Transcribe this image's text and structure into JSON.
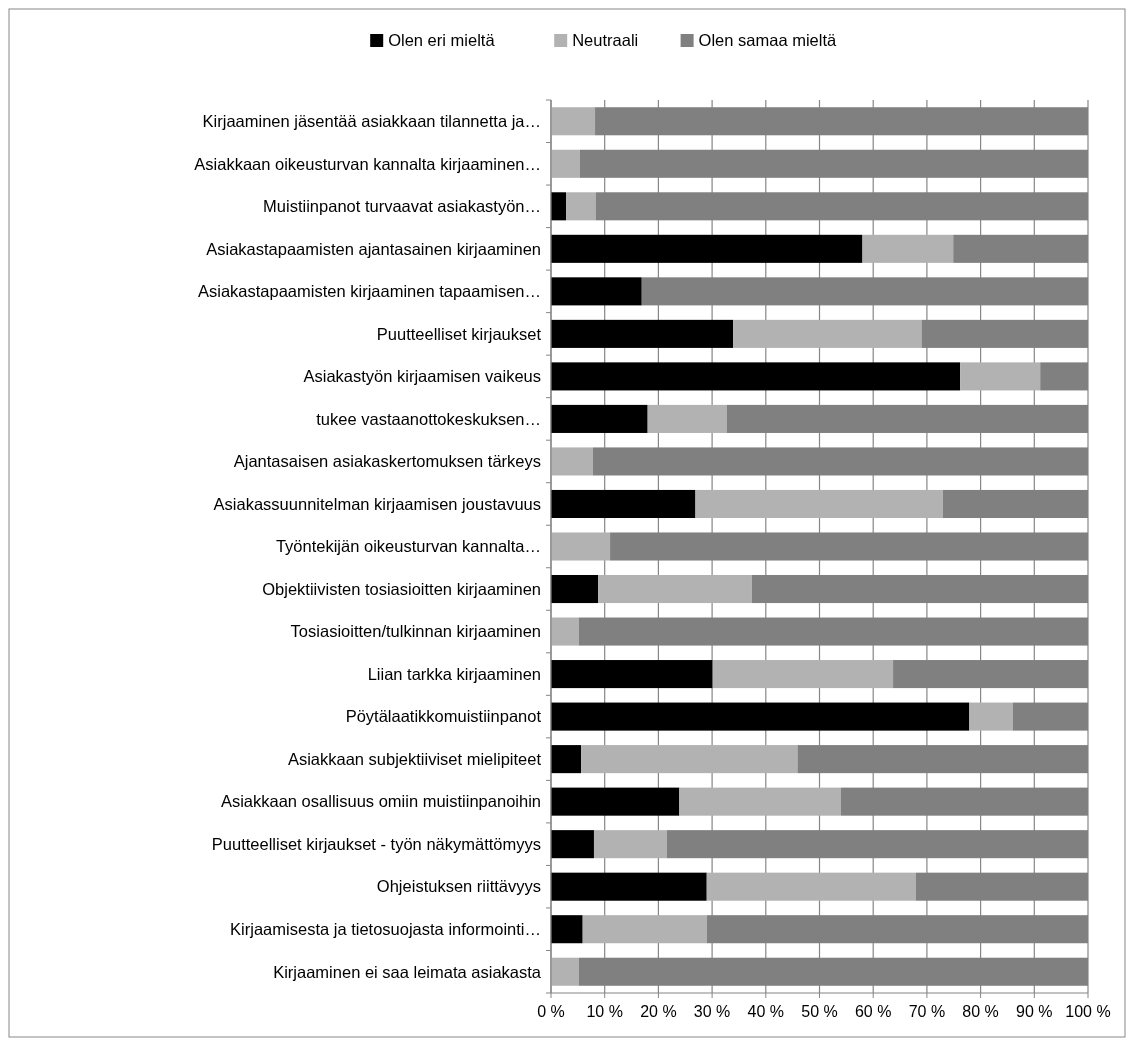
{
  "chart_data": {
    "type": "bar",
    "orientation": "horizontal",
    "stacked": true,
    "legend": "top",
    "grid": "x",
    "categories": [
      "Kirjaaminen jäsentää asiakkaan tilannetta ja…",
      "Asiakkaan oikeusturvan kannalta kirjaaminen…",
      "Muistiinpanot turvaavat asiakastyön…",
      "Asiakastapaamisten ajantasainen kirjaaminen",
      "Asiakastapaamisten kirjaaminen tapaamisen…",
      "Puutteelliset kirjaukset",
      "Asiakastyön kirjaamisen vaikeus",
      "tukee vastaanottokeskuksen…",
      "Ajantasaisen asiakaskertomuksen tärkeys",
      "Asiakassuunnitelman kirjaamisen joustavuus",
      "Työntekijän oikeusturvan kannalta…",
      "Objektiivisten tosiasioitten kirjaaminen",
      "Tosiasioitten/tulkinnan kirjaaminen",
      "Liian tarkka kirjaaminen",
      "Pöytälaatikkomuistiinpanot",
      "Asiakkaan subjektiiviset mielipiteet",
      "Asiakkaan osallisuus omiin muistiinpanoihin",
      "Puutteelliset kirjaukset - työn näkymättömyys",
      "Ohjeistuksen riittävyys",
      "Kirjaamisesta ja tietosuojasta informointi…",
      "Kirjaaminen ei saa leimata asiakasta"
    ],
    "series": [
      {
        "name": "Olen eri mieltä",
        "color": "#000000",
        "values": [
          0,
          0,
          2.8,
          58.0,
          16.9,
          33.9,
          76.2,
          18.0,
          0,
          26.9,
          0,
          8.8,
          0,
          30.1,
          77.9,
          5.6,
          23.9,
          8.0,
          29.0,
          5.9,
          0
        ]
      },
      {
        "name": "Neutraali",
        "color": "#b2b2b2",
        "values": [
          8.2,
          5.4,
          5.5,
          16.9,
          0,
          35.1,
          14.9,
          14.7,
          7.8,
          46.1,
          11.0,
          28.6,
          5.2,
          33.6,
          8.1,
          40.3,
          30.1,
          13.6,
          38.9,
          23.1,
          5.2
        ]
      },
      {
        "name": "Olen samaa mieltä",
        "color": "#808080",
        "values": [
          91.8,
          94.6,
          91.7,
          25.1,
          83.1,
          31.0,
          8.9,
          67.3,
          92.2,
          27.0,
          89.0,
          62.6,
          94.8,
          36.3,
          14.0,
          54.1,
          46.0,
          78.4,
          32.1,
          71.0,
          94.8
        ]
      }
    ],
    "xlim": [
      0,
      100
    ],
    "xticks": [
      {
        "value": 0,
        "label": "0 %"
      },
      {
        "value": 10,
        "label": "10 %"
      },
      {
        "value": 20,
        "label": "20 %"
      },
      {
        "value": 30,
        "label": "30 %"
      },
      {
        "value": 40,
        "label": "40 %"
      },
      {
        "value": 50,
        "label": "50 %"
      },
      {
        "value": 60,
        "label": "60 %"
      },
      {
        "value": 70,
        "label": "70 %"
      },
      {
        "value": 80,
        "label": "80 %"
      },
      {
        "value": 90,
        "label": "90 %"
      },
      {
        "value": 100,
        "label": "100 %"
      }
    ]
  }
}
